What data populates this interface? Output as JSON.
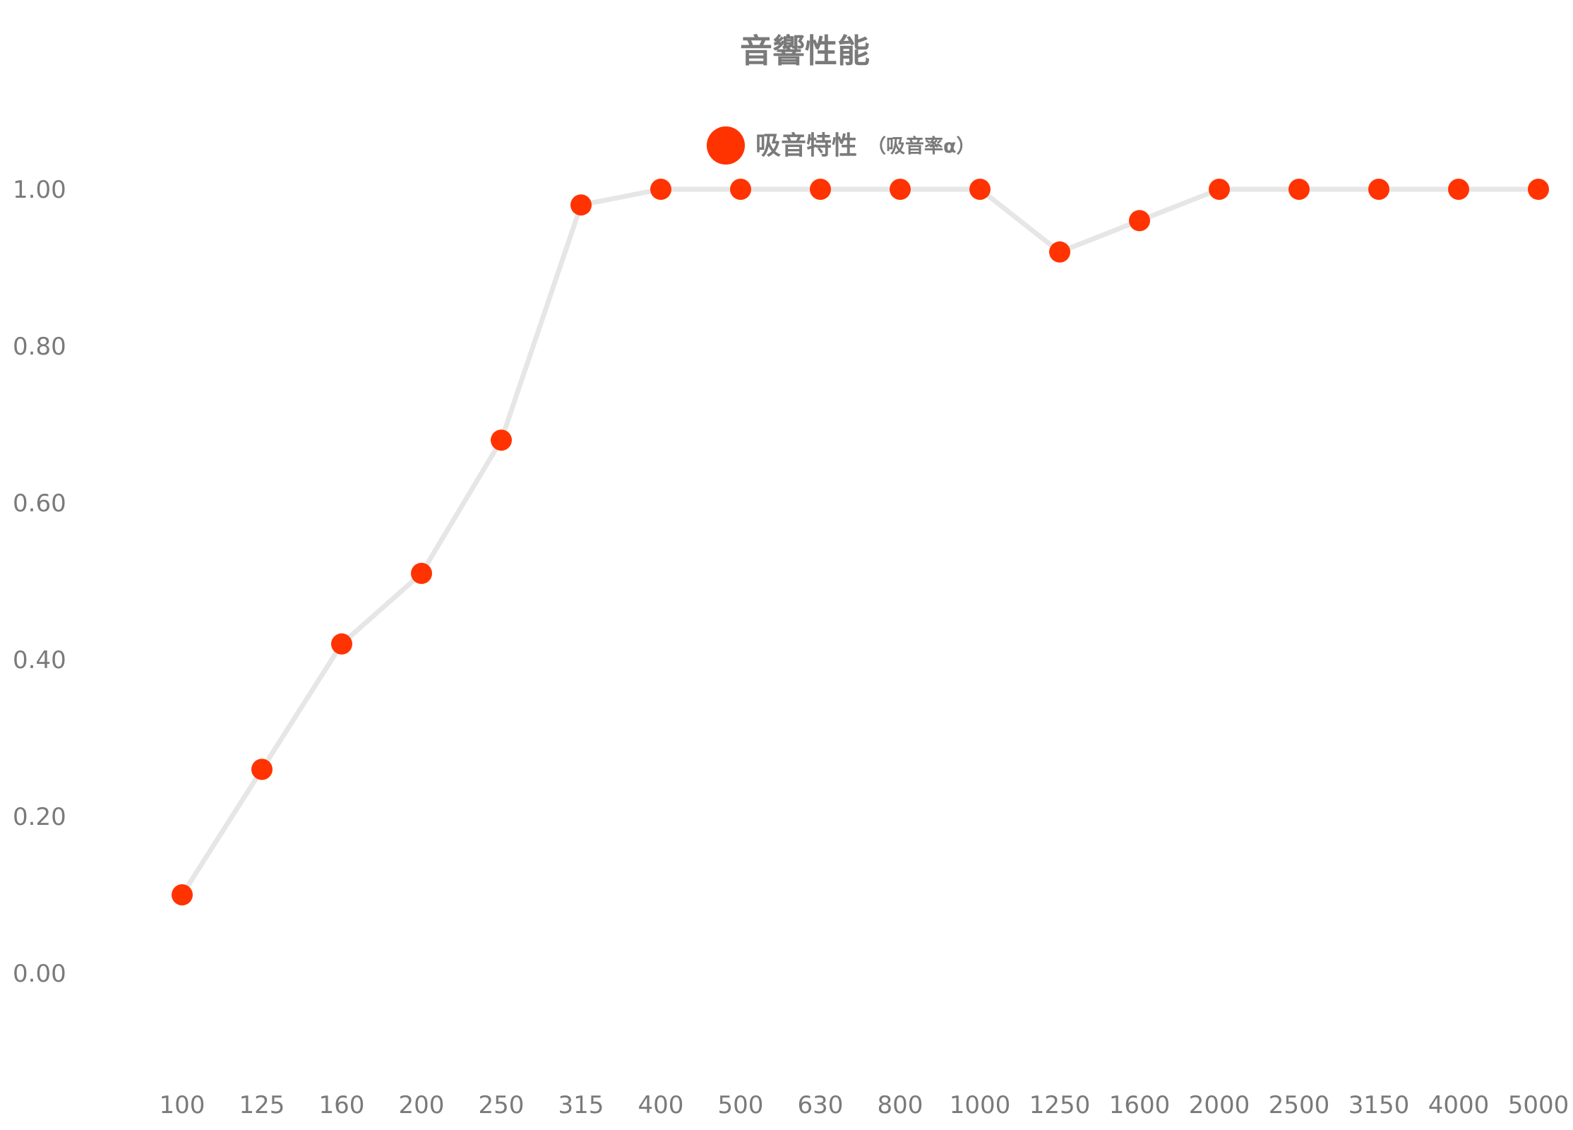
{
  "chart_data": {
    "type": "line",
    "title": "音響性能",
    "legend": {
      "position": "top-center",
      "label": "吸音特性",
      "sublabel": "（吸音率α）"
    },
    "categories": [
      "100",
      "125",
      "160",
      "200",
      "250",
      "315",
      "400",
      "500",
      "630",
      "800",
      "1000",
      "1250",
      "1600",
      "2000",
      "2500",
      "3150",
      "4000",
      "5000"
    ],
    "series": [
      {
        "name": "吸音特性（吸音率α）",
        "values": [
          0.1,
          0.26,
          0.42,
          0.51,
          0.68,
          0.98,
          1.0,
          1.0,
          1.0,
          1.0,
          1.0,
          0.92,
          0.96,
          1.0,
          1.0,
          1.0,
          1.0,
          1.0
        ]
      }
    ],
    "yticks": [
      "0.00",
      "0.20",
      "0.40",
      "0.60",
      "0.80",
      "1.00"
    ],
    "ylim": [
      0,
      1
    ],
    "grid": false,
    "colors": {
      "marker": "#ff3300",
      "line": "#e6e6e6",
      "text": "#7a7a7a"
    }
  }
}
